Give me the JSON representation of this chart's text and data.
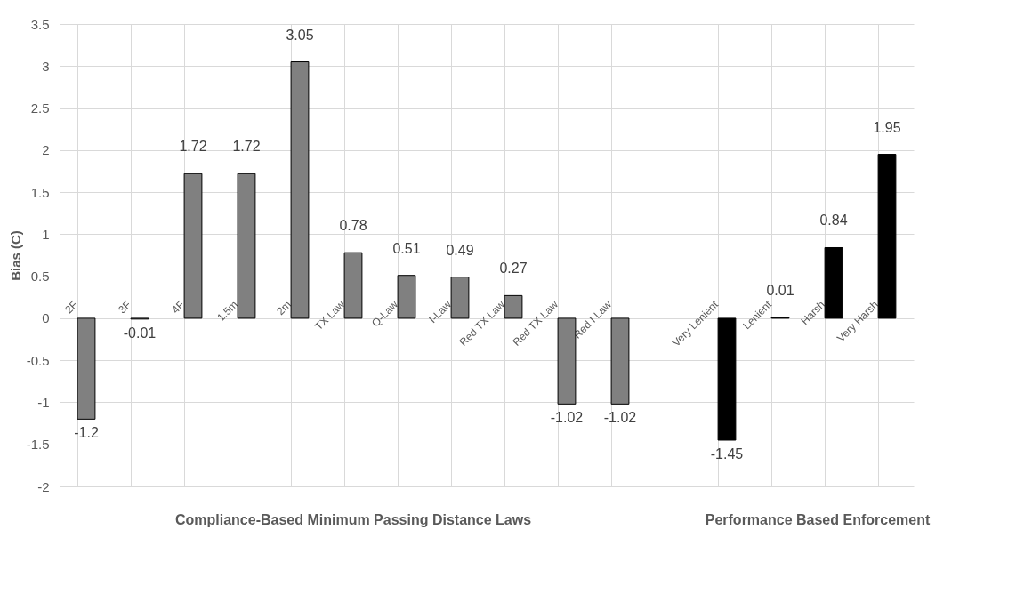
{
  "chart_data": {
    "type": "bar",
    "ylabel": "Bias (C)",
    "categories": [
      "2F",
      "3F",
      "4F",
      "1.5m",
      "2m",
      "TX Law",
      "Q-Law",
      "I-Law",
      "Red TX Law",
      "Red TX Law",
      "Red I Law",
      null,
      "Very Lenient",
      "Lenient",
      "Harsh",
      "Very Harsh"
    ],
    "values": [
      -1.2,
      -0.01,
      1.72,
      1.72,
      3.05,
      0.78,
      0.51,
      0.49,
      0.27,
      -1.02,
      -1.02,
      null,
      -1.45,
      0.01,
      0.84,
      1.95
    ],
    "colors": [
      "#808080",
      "#808080",
      "#808080",
      "#808080",
      "#808080",
      "#808080",
      "#808080",
      "#808080",
      "#808080",
      "#808080",
      "#808080",
      "#808080",
      "#000000",
      "#000000",
      "#000000",
      "#000000"
    ],
    "ylim": [
      -2,
      3.5
    ],
    "yticks": [
      -2,
      -1.5,
      -1,
      -0.5,
      0,
      0.5,
      1,
      1.5,
      2,
      2.5,
      3,
      3.5
    ],
    "grid": true,
    "data_labels": true,
    "annotations": [
      "Compliance-Based Minimum Passing Distance Laws",
      "Performance Based Enforcement"
    ]
  }
}
